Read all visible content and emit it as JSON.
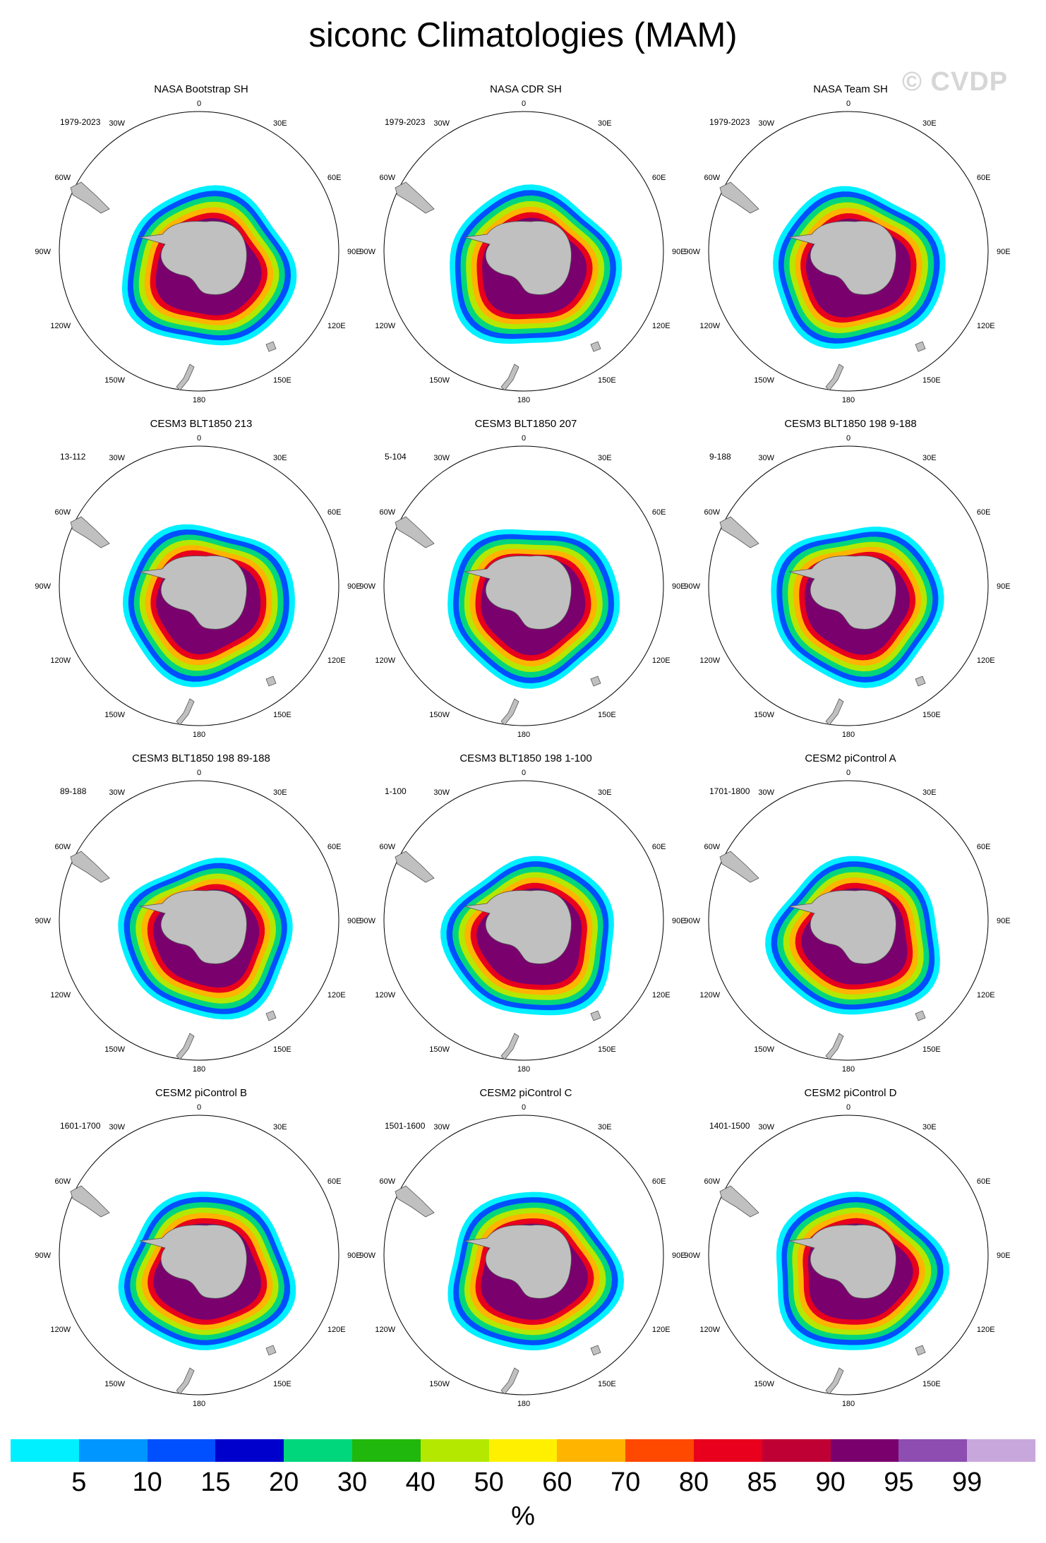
{
  "title": "siconc Climatologies (MAM)",
  "watermark": "© CVDP",
  "map_labels": {
    "lon_top": "0",
    "lon_bottom": "180",
    "lon_30w": "30W",
    "lon_60w": "60W",
    "lon_90w": "90W",
    "lon_120w": "120W",
    "lon_150w": "150W",
    "lon_30e": "30E",
    "lon_60e": "60E",
    "lon_90e": "90E",
    "lon_120e": "120E",
    "lon_150e": "150E"
  },
  "panels": [
    {
      "title": "NASA Bootstrap SH",
      "period": "1979-2023"
    },
    {
      "title": "NASA CDR SH",
      "period": "1979-2023"
    },
    {
      "title": "NASA Team SH",
      "period": "1979-2023"
    },
    {
      "title": "CESM3 BLT1850 213",
      "period": "13-112"
    },
    {
      "title": "CESM3 BLT1850 207",
      "period": "5-104"
    },
    {
      "title": "CESM3 BLT1850 198 9-188",
      "period": "9-188"
    },
    {
      "title": "CESM3 BLT1850 198 89-188",
      "period": "89-188"
    },
    {
      "title": "CESM3 BLT1850 198 1-100",
      "period": "1-100"
    },
    {
      "title": "CESM2 piControl A",
      "period": "1701-1800"
    },
    {
      "title": "CESM2 piControl B",
      "period": "1601-1700"
    },
    {
      "title": "CESM2 piControl C",
      "period": "1501-1600"
    },
    {
      "title": "CESM2 piControl D",
      "period": "1401-1500"
    }
  ],
  "colorbar": {
    "colors": [
      "#00f0ff",
      "#0096ff",
      "#0050ff",
      "#0000cd",
      "#00d67c",
      "#20b80c",
      "#b4e800",
      "#fff000",
      "#ffb400",
      "#ff4800",
      "#e8001c",
      "#bf0035",
      "#7a006e",
      "#8e4db0",
      "#c8a8dc"
    ],
    "ticks": [
      "5",
      "10",
      "15",
      "20",
      "30",
      "40",
      "50",
      "60",
      "70",
      "80",
      "85",
      "90",
      "95",
      "99"
    ],
    "units": "%"
  },
  "ice_band_colors": [
    "#00f0ff",
    "#0050ff",
    "#00d67c",
    "#b4e800",
    "#ffb400",
    "#e8001c",
    "#7a006e"
  ],
  "land_color": "#c0c0c0"
}
